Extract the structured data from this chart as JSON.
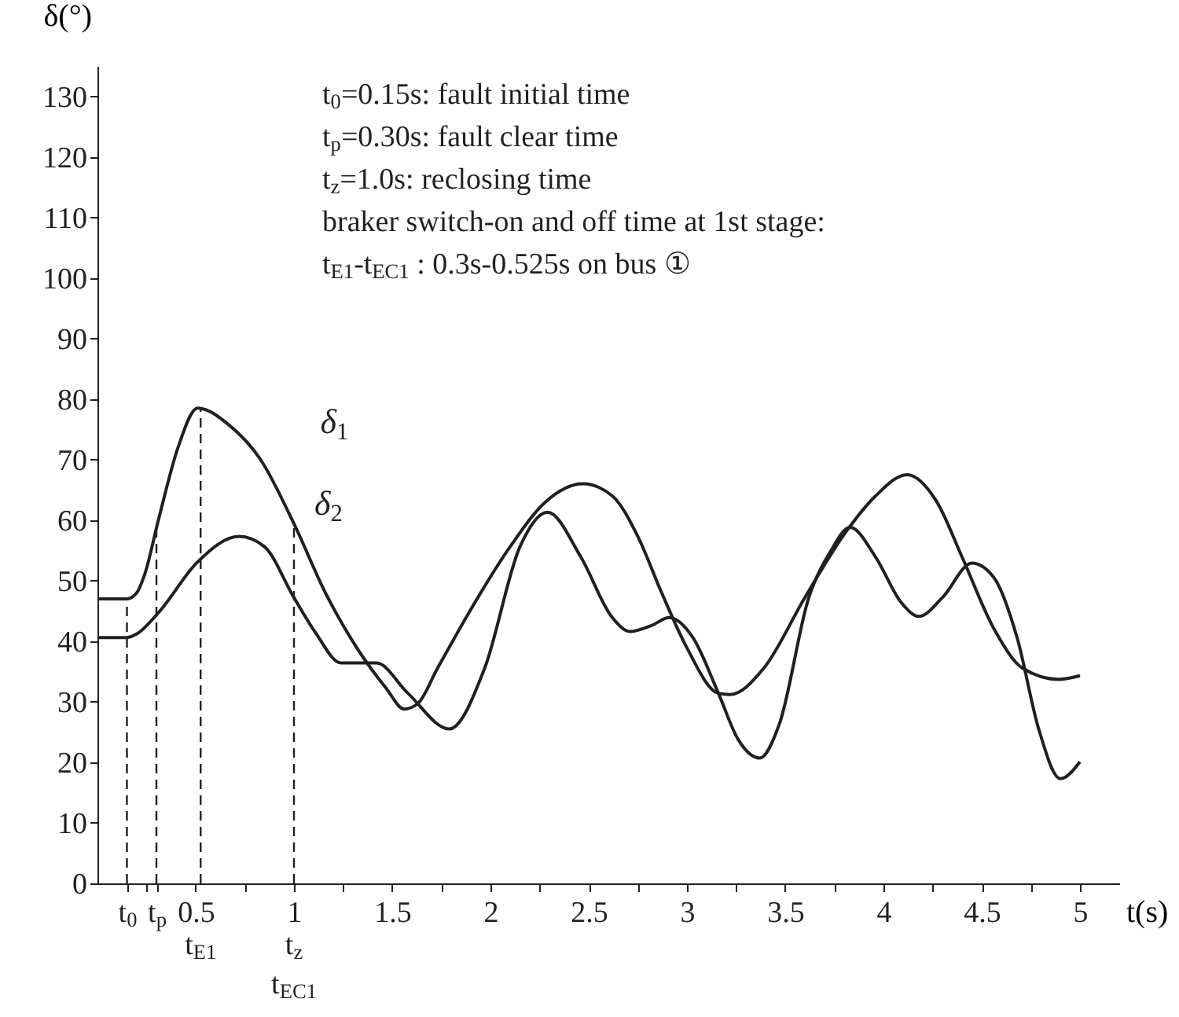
{
  "chart_data": {
    "type": "line",
    "xlabel": "t(s)",
    "ylabel": "δ(°)",
    "xlim": [
      0,
      5.2
    ],
    "ylim": [
      0,
      135
    ],
    "xticks": [
      {
        "value": 0.15,
        "label": "t$_{0}$"
      },
      {
        "value": 0.25,
        "label": null
      },
      {
        "value": 0.3,
        "label": "t$_{p}$"
      },
      0.5,
      {
        "value": 0.75,
        "label": null
      },
      1,
      {
        "value": 1.25,
        "label": null
      },
      1.5,
      {
        "value": 1.75,
        "label": null
      },
      2,
      {
        "value": 2.25,
        "label": null
      },
      2.5,
      {
        "value": 2.75,
        "label": null
      },
      3,
      {
        "value": 3.25,
        "label": null
      },
      3.5,
      {
        "value": 3.75,
        "label": null
      },
      4,
      {
        "value": 4.25,
        "label": null
      },
      4.5,
      {
        "value": 4.75,
        "label": null
      },
      5
    ],
    "yticks": [
      0,
      10,
      20,
      30,
      40,
      50,
      60,
      70,
      80,
      90,
      100,
      110,
      120,
      130
    ],
    "grid": false,
    "legend": false,
    "marker": "none",
    "line_style": "solid",
    "series": [
      {
        "color": "#231f20",
        "x": [
          0,
          0.15,
          0.2,
          0.24,
          0.31,
          0.41,
          0.51,
          0.67,
          0.83,
          1.0,
          1.16,
          1.32,
          1.47,
          1.56,
          1.63,
          1.73,
          1.89,
          2.1,
          2.28,
          2.47,
          2.62,
          2.75,
          2.87,
          3.0,
          3.16,
          3.22,
          3.39,
          3.6,
          3.81,
          3.96,
          4.12,
          4.27,
          4.4,
          4.56,
          4.71,
          4.89,
          5.0
        ],
        "values": [
          47,
          47,
          48,
          51,
          60,
          72,
          78.5,
          75.7,
          70,
          59.4,
          48,
          38.9,
          32.2,
          28.8,
          29.7,
          35.5,
          44.7,
          55.6,
          63,
          66,
          64,
          57.3,
          48.1,
          38.9,
          31.4,
          31.2,
          35.5,
          47.2,
          58.1,
          64,
          67.5,
          63.1,
          53.9,
          42.2,
          35.5,
          33.7,
          34.3
        ]
      },
      {
        "color": "#231f20",
        "x": [
          0,
          0.15,
          0.2,
          0.31,
          0.51,
          0.72,
          0.85,
          1.0,
          1.11,
          1.24,
          1.42,
          1.58,
          1.79,
          1.97,
          2.15,
          2.29,
          2.46,
          2.62,
          2.71,
          2.82,
          2.91,
          3.03,
          3.16,
          3.26,
          3.37,
          3.47,
          3.62,
          3.73,
          3.83,
          3.96,
          4.09,
          4.18,
          4.3,
          4.45,
          4.56,
          4.68,
          4.79,
          4.9,
          5.0
        ],
        "values": [
          40.6,
          40.6,
          41.2,
          44.7,
          53.1,
          57.3,
          55.6,
          47.2,
          41.4,
          36.4,
          36.4,
          31.4,
          25.5,
          35.5,
          55.6,
          61.3,
          53.9,
          43.9,
          41.6,
          42.6,
          43.9,
          40.6,
          31.4,
          23.8,
          20.7,
          26.3,
          47.2,
          54.8,
          58.8,
          53.9,
          46.4,
          44.1,
          47.2,
          52.9,
          50.6,
          40.6,
          25.5,
          17.3,
          20.1
        ]
      }
    ],
    "ref_lines": [
      {
        "axis": "x",
        "value": 0.15,
        "line_style": "dashed"
      },
      {
        "axis": "x",
        "value": 0.3,
        "line_style": "dashed"
      },
      {
        "axis": "x",
        "value": 0.525,
        "line_style": "dashed",
        "label": "t$_{E1}$"
      },
      {
        "axis": "x",
        "value": 1.0,
        "line_style": "dashed",
        "label": "t$_{z}$\nt$_{EC1}$"
      }
    ],
    "annotations": [
      "t$_{0}$=0.15s: fault initial time",
      "t$_{p}$=0.30s: fault clear time",
      "t$_{z}$=1.0s: reclosing time",
      "braker switch-on and off time at 1st stage:",
      "t$_{E1}$-t$_{EC1}$ : 0.3s-0.525s on bus ①",
      {
        "text": "δ$_{1}$",
        "x": 0.83,
        "y": 70
      },
      {
        "text": "δ$_{2}$",
        "x": 0.8,
        "y": 56.5
      }
    ]
  }
}
